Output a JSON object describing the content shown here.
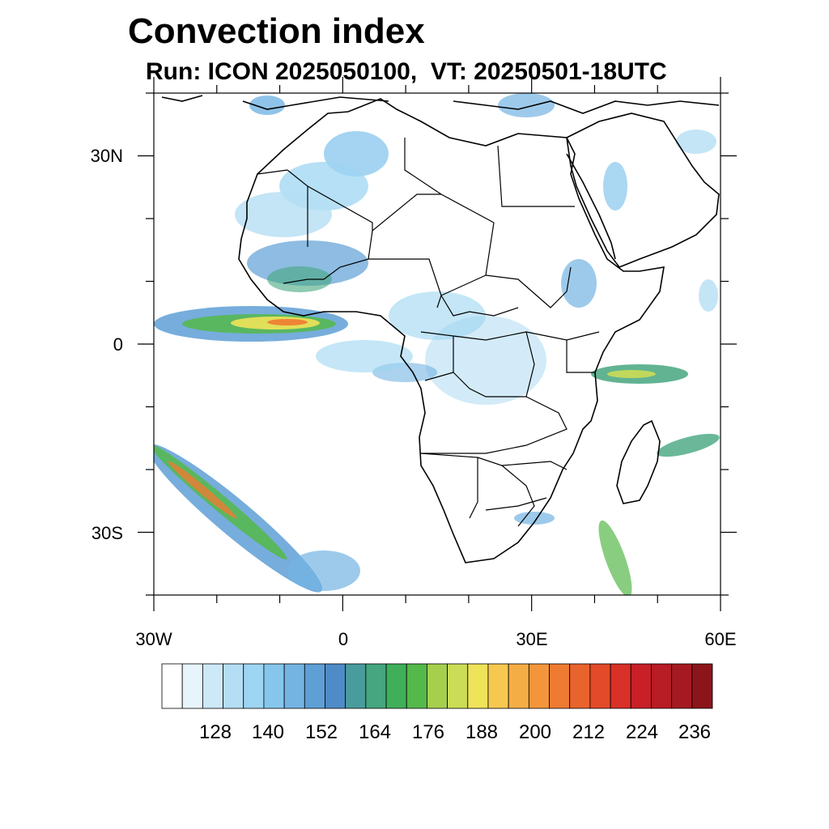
{
  "title": "Convection index",
  "subtitle": "Run: ICON 2025050100,  VT: 20250501-18UTC",
  "map": {
    "lon_range": [
      -30,
      60
    ],
    "lat_range": [
      -40,
      40
    ],
    "lat_ticks": [
      {
        "value": 30,
        "label": "30N"
      },
      {
        "value": 0,
        "label": "0"
      },
      {
        "value": -30,
        "label": "30S"
      }
    ],
    "lon_ticks": [
      {
        "value": -30,
        "label": "30W"
      },
      {
        "value": 0,
        "label": "0"
      },
      {
        "value": 30,
        "label": "30E"
      },
      {
        "value": 60,
        "label": "60E"
      }
    ]
  },
  "colorbar": {
    "colors": [
      "#ffffff",
      "#e8f4fb",
      "#cde8f6",
      "#b5def4",
      "#9dd5f2",
      "#86c6ec",
      "#73b4e3",
      "#5e9fd6",
      "#4f8bc6",
      "#4a9c9c",
      "#45a67f",
      "#3fb059",
      "#55b84a",
      "#a7cf4e",
      "#cbdc57",
      "#efe35a",
      "#f7c84f",
      "#f4ad45",
      "#f3953b",
      "#ef7b32",
      "#e9632c",
      "#e24a29",
      "#d93027",
      "#c91f27",
      "#b81c25",
      "#a51a22",
      "#8c151b"
    ],
    "labels": [
      "128",
      "140",
      "152",
      "164",
      "176",
      "188",
      "200",
      "212",
      "224",
      "236"
    ]
  }
}
